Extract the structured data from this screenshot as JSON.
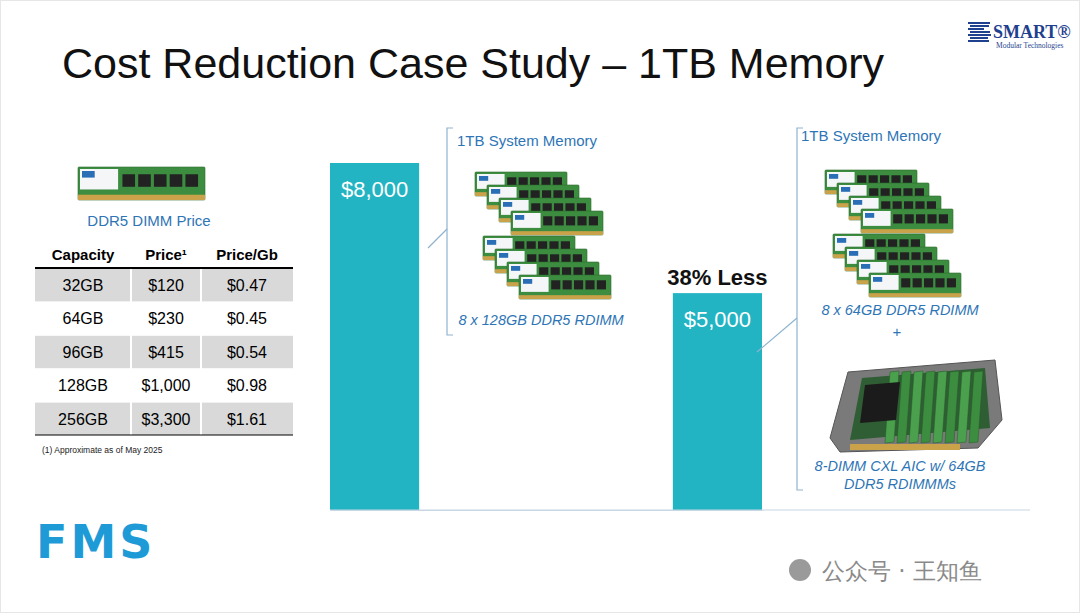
{
  "chart_data": {
    "type": "bar",
    "title": "Cost Reduction Case Study – 1TB Memory",
    "categories": [
      null,
      null
    ],
    "values": [
      8000,
      5000
    ],
    "value_labels": [
      "$8,000",
      "$5,000"
    ],
    "color": "#23b4c3",
    "ylim": [
      0,
      8000
    ],
    "grid": false,
    "tick_labels": false,
    "data_labels": true,
    "annotations": [
      "38% Less"
    ]
  },
  "configs": [
    {
      "heading": "1TB System Memory",
      "items": [
        "8 x 128GB DDR5 RDIMM"
      ]
    },
    {
      "heading": "1TB System Memory",
      "items": [
        "8 x 64GB DDR5 RDIMM",
        "+",
        "8-DIMM CXL AIC w/ 64GB DDR5 RDIMMMs"
      ]
    }
  ],
  "table": {
    "caption": "DDR5 DIMM Price",
    "columns": [
      "Capacity",
      "Price¹",
      "Price/Gb"
    ],
    "rows": [
      [
        "32GB",
        "$120",
        "$0.47"
      ],
      [
        "64GB",
        "$230",
        "$0.45"
      ],
      [
        "96GB",
        "$415",
        "$0.54"
      ],
      [
        "128GB",
        "$1,000",
        "$0.98"
      ],
      [
        "256GB",
        "$3,300",
        "$1.61"
      ]
    ],
    "footnote": "(1) Approximate as of May 2025"
  },
  "logos": {
    "company": "SMART®",
    "company_sub": "Modular Technologies",
    "event": "FMS"
  },
  "watermark": "公众号 · 王知鱼"
}
